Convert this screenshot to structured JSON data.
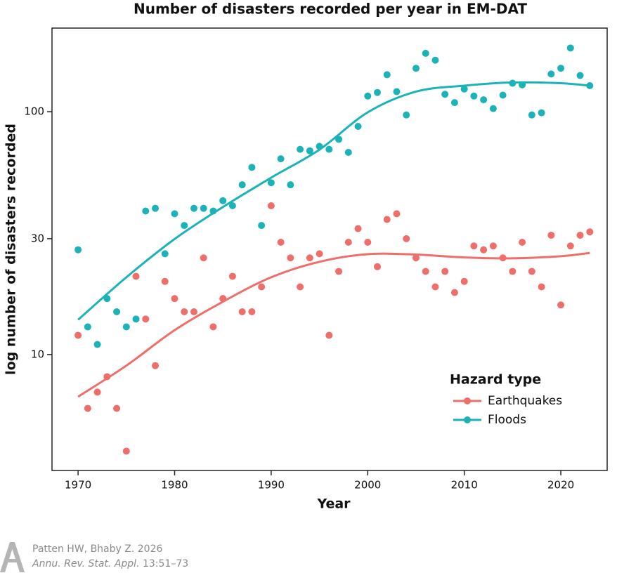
{
  "chart_data": {
    "type": "scatter",
    "title": "Number of disasters recorded per year in EM-DAT",
    "x_label": "Year",
    "y_label": "log number of disasters recorded",
    "yscale": "log",
    "grid": false,
    "legend_title": "Hazard type",
    "legend_position": "lower right",
    "xlim": [
      1967.3,
      2024.8
    ],
    "xticks": [
      1970,
      1980,
      1990,
      2000,
      2010,
      2020
    ],
    "ylim": [
      3.33,
      221
    ],
    "yticks": [
      10,
      30,
      100
    ],
    "x": [
      1970,
      1971,
      1972,
      1973,
      1974,
      1975,
      1976,
      1977,
      1978,
      1979,
      1980,
      1981,
      1982,
      1983,
      1984,
      1985,
      1986,
      1987,
      1988,
      1989,
      1990,
      1991,
      1992,
      1993,
      1994,
      1995,
      1996,
      1997,
      1998,
      1999,
      2000,
      2001,
      2002,
      2003,
      2004,
      2005,
      2006,
      2007,
      2008,
      2009,
      2010,
      2011,
      2012,
      2013,
      2014,
      2015,
      2016,
      2017,
      2018,
      2019,
      2020,
      2021,
      2022,
      2023
    ],
    "trend_x": [
      1970,
      1975,
      1980,
      1985,
      1990,
      1995,
      2000,
      2005,
      2010,
      2015,
      2020,
      2023
    ],
    "series": [
      {
        "name": "Earthquakes",
        "color": "#ee6e69",
        "values": [
          12,
          6,
          7,
          8.1,
          6,
          4,
          21,
          14,
          9,
          20,
          17,
          15,
          15,
          25,
          13,
          17,
          21,
          15,
          15,
          19,
          41,
          29,
          25,
          19,
          25,
          26,
          12,
          22,
          29,
          33,
          29,
          23,
          36,
          38,
          30,
          25,
          22,
          19,
          22,
          18,
          20,
          28,
          27,
          28,
          25,
          22,
          29,
          22,
          19,
          31,
          16,
          28,
          31,
          32
        ],
        "trend": [
          6.7,
          9,
          12.6,
          16.5,
          20.8,
          24.1,
          25.9,
          25.8,
          25.1,
          24.9,
          25.4,
          26.2
        ]
      },
      {
        "name": "Floods",
        "color": "#1bb3b8",
        "values": [
          27,
          13,
          11,
          17,
          15,
          13,
          14,
          39,
          40,
          26,
          38,
          34,
          40,
          40,
          39,
          43,
          41,
          50,
          59,
          34,
          51,
          64,
          50,
          70,
          69,
          72,
          70,
          77,
          68,
          87,
          116,
          120,
          142,
          121,
          97,
          151,
          174,
          163,
          118,
          109,
          124,
          116,
          112,
          103,
          117,
          131,
          129,
          97,
          99,
          143,
          151,
          183,
          141,
          128
        ],
        "trend": [
          13.9,
          20.8,
          29.9,
          40.5,
          53.5,
          69.8,
          99.4,
          121,
          128,
          132,
          131,
          128
        ]
      }
    ]
  },
  "source": {
    "citation": "Patten HW, Bhaby Z. 2026",
    "journal": "Annu. Rev. Stat. Appl.",
    "volume": "13:51–73"
  }
}
